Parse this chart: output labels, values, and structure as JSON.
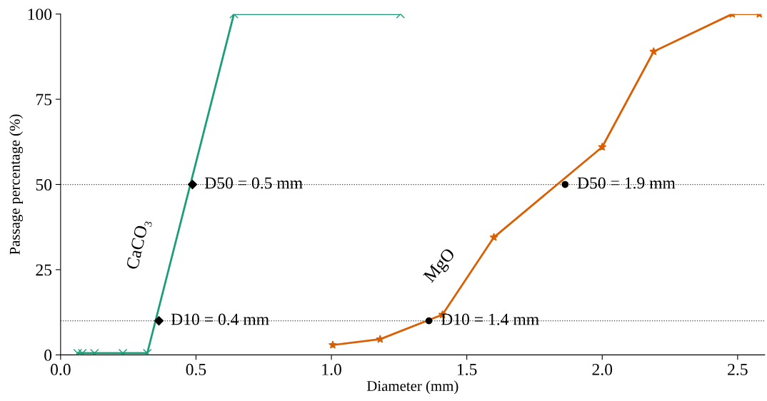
{
  "chart_data": {
    "type": "line",
    "xlabel": "Diameter (mm)",
    "ylabel": "Passage percentage (%)",
    "xlim": [
      0,
      2.6
    ],
    "ylim": [
      0,
      100
    ],
    "xticks": [
      {
        "value": 0,
        "label": "0.0"
      },
      0.5,
      {
        "value": 1,
        "label": "1.0"
      },
      1.5,
      {
        "value": 2,
        "label": "2.0"
      },
      2.5
    ],
    "yticks": [
      0,
      25,
      50,
      75,
      100
    ],
    "grid": false,
    "legend": false,
    "line_style": "solid",
    "series": [
      {
        "name": "CaCO₃",
        "color": "#1b9e77",
        "marker": "cross",
        "x": [
          0.063,
          0.08,
          0.125,
          0.23,
          0.32,
          0.64,
          1.255
        ],
        "values": [
          0.5,
          0.5,
          0.5,
          0.5,
          0.5,
          100,
          100
        ]
      },
      {
        "name": "MgO",
        "color": "#d95f02",
        "marker": "star",
        "x": [
          1.005,
          1.18,
          1.41,
          1.6,
          2.0,
          2.19,
          2.48,
          2.58
        ],
        "values": [
          2.9,
          4.6,
          11.8,
          34.5,
          61,
          89,
          100,
          100
        ]
      },
      {
        "type": "scatter",
        "color": "#000000",
        "marker": "diamond",
        "x": [
          0.363,
          0.487
        ],
        "values": [
          10,
          50
        ]
      },
      {
        "type": "scatter",
        "color": "#000000",
        "marker": "circle",
        "x": [
          1.36,
          1.863
        ],
        "values": [
          10,
          50
        ]
      }
    ],
    "ref_lines": [
      {
        "axis": "y",
        "value": 50,
        "color": "#404040",
        "line_style": "dotted"
      },
      {
        "axis": "y",
        "value": 10,
        "color": "#404040",
        "line_style": "dotted"
      }
    ],
    "annotations": [
      {
        "text": "D50 = 0.5 mm",
        "x": 0.487,
        "y": 50
      },
      {
        "text": "D10 = 0.4 mm",
        "x": 0.363,
        "y": 10
      },
      {
        "text": "D50 = 1.9 mm",
        "x": 1.863,
        "y": 50
      },
      {
        "text": "D10 = 1.4 mm",
        "x": 1.36,
        "y": 10
      }
    ]
  }
}
